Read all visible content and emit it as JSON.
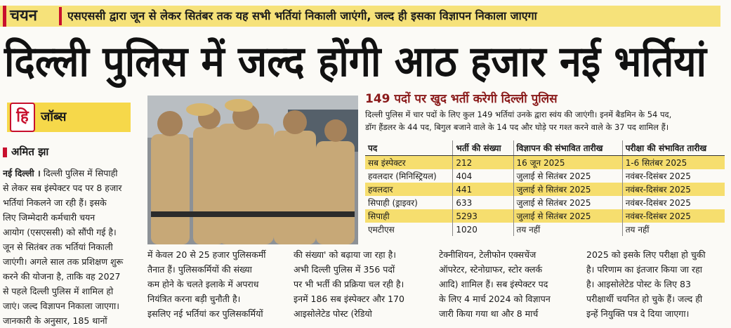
{
  "header": {
    "tag": "चयन",
    "strap": "एसएससी द्वारा जून से लेकर सितंबर तक यह सभी भर्तियां निकाली जाएंगी, जल्द ही इसका विज्ञापन निकाला जाएगा"
  },
  "headline": "दिल्ली पुलिस में जल्द होंगी आठ हजार नई भर्तियां",
  "section": {
    "logo": "हि",
    "label": "जॉब्स"
  },
  "byline": "अमित झा",
  "dateline": "नई दिल्ली ।",
  "columns": [
    [
      "दिल्ली पुलिस में सिपाही",
      "से लेकर सब इंस्पेक्टर पद पर 8 हजार",
      "भर्तियां निकलने जा रही हैं। इसके",
      "लिए जिम्मेदारी कर्मचारी चयन",
      "आयोग (एसएससी) को सौंपी गई है।",
      "जून से सितंबर तक भर्तियां निकाली",
      "जाएंगी। अगले साल तक प्रशिक्षण शुरू",
      "करने की योजना है, ताकि वह 2027",
      "से पहले दिल्ली पुलिस में शामिल हो",
      "जाएं। जल्द विज्ञापन निकाला जाएगा।",
      "जानकारी के अनुसार, 185 थानों"
    ],
    [
      "में केवल 20 से 25 हजार पुलिसकर्मी",
      "तैनात हैं। पुलिसकर्मियों की संख्या",
      "कम होने के चलते इलाके में अपराध",
      "नियंत्रित करना बड़ी चुनौती है।",
      "इसलिए नई भर्तियां कर पुलिसकर्मियों"
    ],
    [
      "की संख्या' को बढ़ाया जा रहा है।",
      "अभी दिल्ली पुलिस में 356 पदों",
      "पर भी भर्ती की प्रक्रिया चल रही है।",
      "इनमें 186 सब इंस्पेक्टर और 170",
      "आइसोलेटेड पोस्ट (रेडियो"
    ],
    [
      "टेक्नीशियन, टेलीफोन एक्सचेंज",
      "ऑपरेटर, स्टेनोग्राफर, स्टोर क्लर्क",
      "आदि) शामिल हैं। सब इंस्पेक्टर पद",
      "के लिए 4 मार्च 2024 को विज्ञापन",
      "जारी किया गया था और 8 मार्च"
    ],
    [
      "2025 को इसके लिए परीक्षा हो चुकी",
      "है। परिणाम का इंतजार किया जा रहा",
      "है। आइसोलेटेड पोस्ट के लिए 83",
      "परीक्षार्थी चयनित हो चुके हैं। जल्द ही",
      "इन्हें नियुक्ति पत्र दे दिया जाएगा।"
    ]
  ],
  "sidebar": {
    "title": "149 पदों पर खुद भर्ती करेगी दिल्ली पुलिस",
    "intro": [
      "दिल्ली पुलिस में चार पदों के लिए कुल 149 भर्तियां उनके द्वारा स्वंय की जाएंगी। इनमें बैडमिन के 54 पद,",
      "डॉग हैंडलर के 44 पद, बिगुल बजाने वाले के 14 पद और घोड़े पर गश्त करने वाले के 37 पद शामिल हैं।"
    ],
    "table": {
      "columns": [
        "पद",
        "भर्ती की संख्या",
        "विज्ञापन की संभावित तारीख",
        "परीक्षा की संभावित तारीख"
      ],
      "rows": [
        [
          "सब इंस्पेक्टर",
          "212",
          "16 जून 2025",
          "1-6 सितंबर 2025"
        ],
        [
          "हवलदार (मिनिस्ट्रियल)",
          "404",
          "जुलाई से सितंबर 2025",
          "नवंबर-दिसंबर 2025"
        ],
        [
          "हवलदार",
          "441",
          "जुलाई से सितंबर 2025",
          "नवंबर-दिसंबर 2025"
        ],
        [
          "सिपाही (ड्राइवर)",
          "633",
          "जुलाई से सितंबर 2025",
          "नवंबर-दिसंबर 2025"
        ],
        [
          "सिपाही",
          "5293",
          "जुलाई से सितंबर 2025",
          "नवंबर-दिसंबर 2025"
        ],
        [
          "एमटीएस",
          "1020",
          "तय नहीं",
          "तय नहीं"
        ]
      ]
    }
  }
}
